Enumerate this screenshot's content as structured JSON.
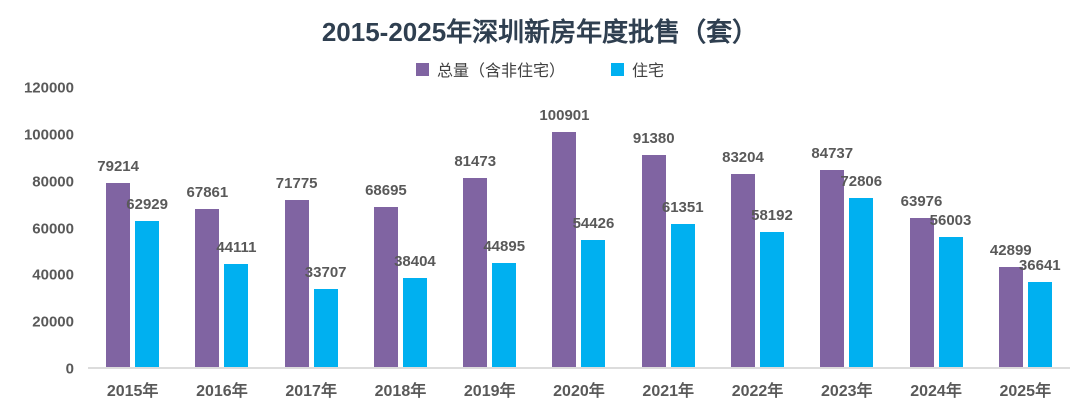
{
  "chart_data": {
    "type": "bar",
    "title": "2015-2025年深圳新房年度批售（套）",
    "categories": [
      "2015年",
      "2016年",
      "2017年",
      "2018年",
      "2019年",
      "2020年",
      "2021年",
      "2022年",
      "2023年",
      "2024年",
      "2025年"
    ],
    "series": [
      {
        "name": "总量（含非住宅）",
        "color": "#8064A2",
        "values": [
          79214,
          67861,
          71775,
          68695,
          81473,
          100901,
          91380,
          83204,
          84737,
          63976,
          42899
        ]
      },
      {
        "name": "住宅",
        "color": "#00B0F0",
        "values": [
          62929,
          44111,
          33707,
          38404,
          44895,
          54426,
          61351,
          58192,
          72806,
          56003,
          36641
        ]
      }
    ],
    "xlabel": "",
    "ylabel": "",
    "ylim": [
      0,
      120000
    ],
    "yticks": [
      0,
      20000,
      40000,
      60000,
      80000,
      100000,
      120000
    ],
    "grid": false,
    "legend_position": "top",
    "data_labels": true,
    "label_color": "#595959",
    "axis_text_color": "#595959",
    "title_color": "#2f3f50"
  }
}
